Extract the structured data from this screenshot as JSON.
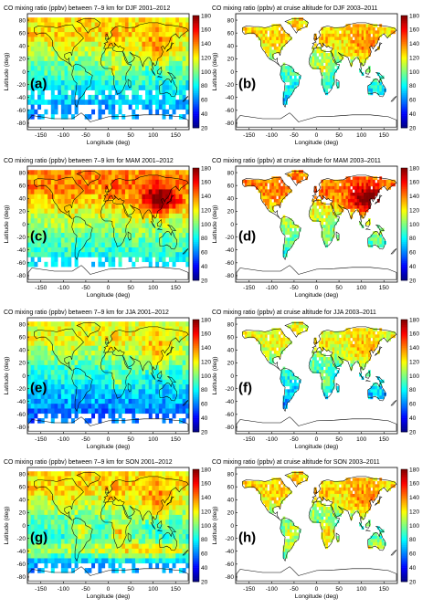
{
  "colorbar": {
    "ticks": [
      20,
      40,
      60,
      80,
      100,
      120,
      140,
      160,
      180
    ],
    "range": [
      20,
      180
    ],
    "colors": [
      "#00007f",
      "#0000ff",
      "#0080ff",
      "#00ffff",
      "#80ff80",
      "#ffff00",
      "#ff8000",
      "#ff0000",
      "#7f0000"
    ]
  },
  "axes": {
    "x_ticks": [
      -150,
      -100,
      -50,
      0,
      50,
      100,
      150
    ],
    "y_ticks": [
      -80,
      -60,
      -40,
      -20,
      0,
      20,
      40,
      60,
      80
    ],
    "x_range": [
      -180,
      180
    ],
    "y_range": [
      -90,
      90
    ],
    "xlabel": "Longitude (deg)",
    "ylabel": "Latitude (deg)"
  },
  "panels": [
    {
      "id": "a",
      "label": "(a)",
      "title": "CO mixing ratio (ppbv) between 7–9 km for DJF 2001–2012",
      "source": "sat",
      "season": "DJF"
    },
    {
      "id": "b",
      "label": "(b)",
      "title": "CO mixing ratio (ppbv) at cruise altitude for DJF 2003–2011",
      "source": "air",
      "season": "DJF"
    },
    {
      "id": "c",
      "label": "(c)",
      "title": "CO mixing ratio (ppbv) between 7–9 km for MAM 2001–2012",
      "source": "sat",
      "season": "MAM"
    },
    {
      "id": "d",
      "label": "(d)",
      "title": "CO mixing ratio (ppbv) at cruise altitude for MAM 2003–2011",
      "source": "air",
      "season": "MAM"
    },
    {
      "id": "e",
      "label": "(e)",
      "title": "CO mixing ratio (ppbv) between 7–9 km for JJA 2001–2012",
      "source": "sat",
      "season": "JJA"
    },
    {
      "id": "f",
      "label": "(f)",
      "title": "CO mixing ratio (ppbv) at cruise altitude for JJA 2003–2011",
      "source": "air",
      "season": "JJA"
    },
    {
      "id": "g",
      "label": "(g)",
      "title": "CO mixing ratio (ppbv) between 7–9 km for SON 2001–2012",
      "source": "sat",
      "season": "SON"
    },
    {
      "id": "h",
      "label": "(h)",
      "title": "CO mixing ratio (ppbv) at cruise altitude for SON 2003–2011",
      "source": "air",
      "season": "SON"
    }
  ]
}
